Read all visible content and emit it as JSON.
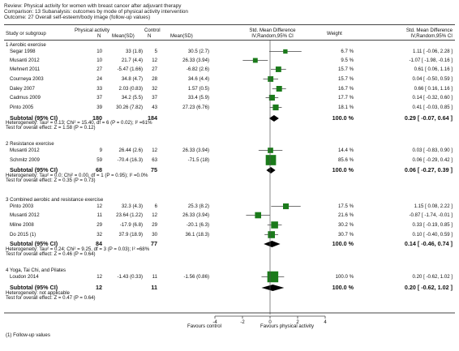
{
  "header": {
    "review": "Review:  Physical activity for women with breast cancer after adjuvant therapy",
    "comparison": "Comparison:  13 Subanalysis: outcomes by mode of physical activity intervention",
    "outcome": "Outcome:  27 Overall self-esteem/body image (follow-up values)"
  },
  "columns": {
    "study": "Study or subgroup",
    "pa": "Physical activity",
    "control": "Control",
    "n": "N",
    "meansd": "Mean(SD)",
    "smd_title": "Std. Mean Difference",
    "smd_method": "IV,Random,95% CI",
    "weight": "Weight",
    "smd_right_title": "Std. Mean Difference",
    "smd_right_method": "IV,Random,95% CI"
  },
  "footnote": "(1) Follow-up values",
  "chart_data": {
    "type": "forest",
    "xlim": [
      -4,
      4
    ],
    "ticks": [
      "-4",
      "-2",
      "0",
      "2",
      "4"
    ],
    "favours_left": "Favours control",
    "favours_right": "Favours physical activity",
    "subgroups": [
      {
        "title": "1 Aerobic exercise",
        "studies": [
          {
            "name": "Segar 1998",
            "pa_n": "10",
            "pa_ms": "33 (1.8)",
            "c_n": "5",
            "c_ms": "30.5 (2.7)",
            "weight": "6.7 %",
            "est": 1.11,
            "lo": -0.06,
            "hi": 2.28,
            "ci": "1.11 [ -0.06, 2.28 ]"
          },
          {
            "name": "Musanti 2012",
            "pa_n": "10",
            "pa_ms": "21.7 (4.4)",
            "c_n": "12",
            "c_ms": "26.33 (3.94)",
            "weight": "9.5 %",
            "est": -1.07,
            "lo": -1.98,
            "hi": -0.16,
            "ci": "-1.07 [ -1.98, -0.16 ]"
          },
          {
            "name": "Mehnert 2011",
            "pa_n": "27",
            "pa_ms": "-5.47 (1.66)",
            "c_n": "27",
            "c_ms": "-6.82 (2.6)",
            "weight": "15.7 %",
            "est": 0.61,
            "lo": 0.06,
            "hi": 1.16,
            "ci": "0.61 [ 0.06, 1.16 ]"
          },
          {
            "name": "Courneya 2003",
            "pa_n": "24",
            "pa_ms": "34.8 (4.7)",
            "c_n": "28",
            "c_ms": "34.6 (4.4)",
            "weight": "15.7 %",
            "est": 0.04,
            "lo": -0.5,
            "hi": 0.59,
            "ci": "0.04 [ -0.50, 0.59 ]"
          },
          {
            "name": "Daley 2007",
            "pa_n": "33",
            "pa_ms": "2.03 (0.83)",
            "c_n": "32",
            "c_ms": "1.57 (0.5)",
            "weight": "16.7 %",
            "est": 0.66,
            "lo": 0.16,
            "hi": 1.16,
            "ci": "0.66 [ 0.16, 1.16 ]"
          },
          {
            "name": "Cadmus 2009",
            "pa_n": "37",
            "pa_ms": "34.2 (5.5)",
            "c_n": "37",
            "c_ms": "33.4 (5.9)",
            "weight": "17.7 %",
            "est": 0.14,
            "lo": -0.32,
            "hi": 0.6,
            "ci": "0.14 [ -0.32, 0.60 ]"
          },
          {
            "name": "Pinto 2005",
            "pa_n": "39",
            "pa_ms": "30.26 (7.82)",
            "c_n": "43",
            "c_ms": "27.23 (6.76)",
            "weight": "18.1 %",
            "est": 0.41,
            "lo": -0.03,
            "hi": 0.85,
            "ci": "0.41 [ -0.03, 0.85 ]"
          }
        ],
        "subtotal": {
          "label": "Subtotal (95% CI)",
          "pa_n": "180",
          "c_n": "184",
          "weight": "100.0 %",
          "est": 0.29,
          "lo": -0.07,
          "hi": 0.64,
          "ci": "0.29 [ -0.07, 0.64 ]"
        },
        "heterogeneity": "Heterogeneity: Tau² = 0.13; Chi² = 15.40, df = 6 (P = 0.02); I² =61%",
        "overall": "Test for overall effect: Z = 1.58 (P = 0.12)"
      },
      {
        "title": "2 Resistance exercise",
        "studies": [
          {
            "name": "Musanti 2012",
            "pa_n": "9",
            "pa_ms": "26.44 (2.6)",
            "c_n": "12",
            "c_ms": "26.33 (3.94)",
            "weight": "14.4 %",
            "est": 0.03,
            "lo": -0.83,
            "hi": 0.9,
            "ci": "0.03 [ -0.83, 0.90 ]"
          },
          {
            "name": "Schmitz 2009",
            "pa_n": "59",
            "pa_ms": "-70.4 (16.3)",
            "c_n": "63",
            "c_ms": "-71.5 (18)",
            "weight": "85.6 %",
            "est": 0.06,
            "lo": -0.29,
            "hi": 0.42,
            "ci": "0.06 [ -0.29, 0.42 ]"
          }
        ],
        "subtotal": {
          "label": "Subtotal (95% CI)",
          "pa_n": "68",
          "c_n": "75",
          "weight": "100.0 %",
          "est": 0.06,
          "lo": -0.27,
          "hi": 0.39,
          "ci": "0.06 [ -0.27, 0.39 ]"
        },
        "heterogeneity": "Heterogeneity: Tau² = 0.0; Chi² = 0.00, df = 1 (P = 0.95); I² =0.0%",
        "overall": "Test for overall effect: Z = 0.35 (P = 0.73)"
      },
      {
        "title": "3 Combined aerobic and resistance exercise",
        "studies": [
          {
            "name": "Pinto 2003",
            "pa_n": "12",
            "pa_ms": "32.3 (4.3)",
            "c_n": "6",
            "c_ms": "25.3 (8.2)",
            "weight": "17.5 %",
            "est": 1.15,
            "lo": 0.08,
            "hi": 2.22,
            "ci": "1.15 [ 0.08, 2.22 ]"
          },
          {
            "name": "Musanti 2012",
            "pa_n": "11",
            "pa_ms": "23.64 (1.22)",
            "c_n": "12",
            "c_ms": "26.33 (3.94)",
            "weight": "21.6 %",
            "est": -0.87,
            "lo": -1.74,
            "hi": -0.01,
            "ci": "-0.87 [ -1.74, -0.01 ]"
          },
          {
            "name": "Milne 2008",
            "pa_n": "29",
            "pa_ms": "-17.9 (6.8)",
            "c_n": "29",
            "c_ms": "-20.1 (6.3)",
            "weight": "30.2 %",
            "est": 0.33,
            "lo": -0.19,
            "hi": 0.85,
            "ci": "0.33 [ -0.19, 0.85 ]"
          },
          {
            "name": "Do 2015 (1)",
            "pa_n": "32",
            "pa_ms": "37.9 (18.9)",
            "c_n": "30",
            "c_ms": "36.1 (18.3)",
            "weight": "30.7 %",
            "est": 0.1,
            "lo": -0.4,
            "hi": 0.59,
            "ci": "0.10 [ -0.40, 0.59 ]"
          }
        ],
        "subtotal": {
          "label": "Subtotal (95% CI)",
          "pa_n": "84",
          "c_n": "77",
          "weight": "100.0 %",
          "est": 0.14,
          "lo": -0.46,
          "hi": 0.74,
          "ci": "0.14 [ -0.46, 0.74 ]"
        },
        "heterogeneity": "Heterogeneity: Tau² = 0.24; Chi² = 9.25, df = 3 (P = 0.03); I² =68%",
        "overall": "Test for overall effect: Z = 0.46 (P = 0.64)"
      },
      {
        "title": "4 Yoga, Tai Chi, and Pilates",
        "studies": [
          {
            "name": "Loudon 2014",
            "pa_n": "12",
            "pa_ms": "-1.43 (0.33)",
            "c_n": "11",
            "c_ms": "-1.56 (0.86)",
            "weight": "100.0 %",
            "est": 0.2,
            "lo": -0.62,
            "hi": 1.02,
            "ci": "0.20 [ -0.62, 1.02 ]"
          }
        ],
        "subtotal": {
          "label": "Subtotal (95% CI)",
          "pa_n": "12",
          "c_n": "11",
          "weight": "100.0 %",
          "est": 0.2,
          "lo": -0.62,
          "hi": 1.02,
          "ci": "0.20 [ -0.62, 1.02 ]"
        },
        "heterogeneity": "Heterogeneity: not applicable",
        "overall": "Test for overall effect: Z = 0.47 (P = 0.64)"
      }
    ]
  },
  "colors": {
    "marker": "#1a7a1a",
    "diamond": "#000000",
    "line": "#444444"
  }
}
